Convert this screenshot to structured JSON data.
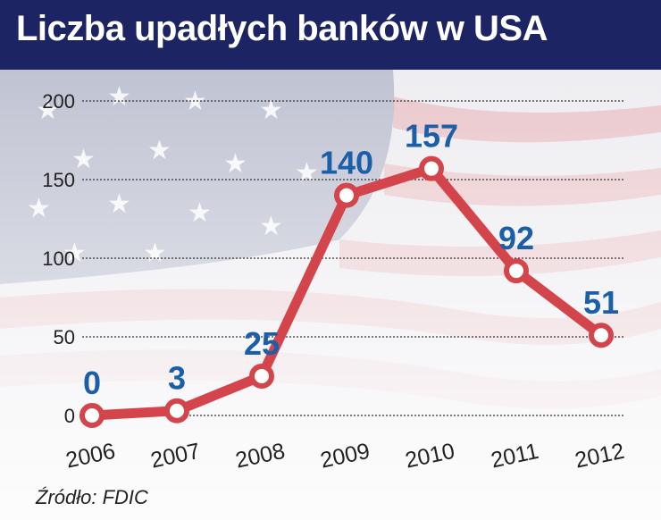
{
  "title": "Liczba upadłych banków w USA",
  "source": "Źródło: FDIC",
  "colors": {
    "header_bg": "#1c2463",
    "line": "#d3454a",
    "marker_fill": "#ffffff",
    "value_labels": "#1a5fa8",
    "axis_text": "#222222",
    "gridline": "#333333"
  },
  "background": "american-flag-image",
  "chart_data": {
    "type": "line",
    "categories": [
      "2006",
      "2007",
      "2008",
      "2009",
      "2010",
      "2011",
      "2012"
    ],
    "values": [
      0,
      3,
      25,
      140,
      157,
      92,
      51
    ],
    "value_labels": [
      "0",
      "3",
      "25",
      "140",
      "157",
      "92",
      "51"
    ],
    "yticks": [
      "0",
      "50",
      "100",
      "150",
      "200"
    ],
    "ylim": [
      0,
      200
    ],
    "grid": true,
    "legend": "none",
    "title": "Liczba upadłych banków w USA",
    "xlabel": "",
    "ylabel": ""
  }
}
